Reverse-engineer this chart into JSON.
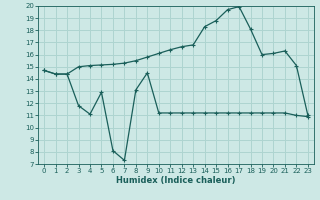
{
  "xlabel": "Humidex (Indice chaleur)",
  "background_color": "#cde8e5",
  "line_color": "#1a5f5a",
  "grid_color": "#aed4d0",
  "xlim": [
    -0.5,
    23.5
  ],
  "ylim": [
    7,
    20
  ],
  "xticks": [
    0,
    1,
    2,
    3,
    4,
    5,
    6,
    7,
    8,
    9,
    10,
    11,
    12,
    13,
    14,
    15,
    16,
    17,
    18,
    19,
    20,
    21,
    22,
    23
  ],
  "yticks": [
    7,
    8,
    9,
    10,
    11,
    12,
    13,
    14,
    15,
    16,
    17,
    18,
    19,
    20
  ],
  "line1_x": [
    0,
    1,
    2,
    3,
    4,
    5,
    6,
    7,
    8,
    9,
    10,
    11,
    12,
    13,
    14,
    15,
    16,
    17,
    18,
    19,
    20,
    21,
    22,
    23
  ],
  "line1_y": [
    14.7,
    14.4,
    14.4,
    15.0,
    15.1,
    15.15,
    15.2,
    15.3,
    15.5,
    15.8,
    16.1,
    16.4,
    16.65,
    16.8,
    18.3,
    18.8,
    19.7,
    19.95,
    18.1,
    16.0,
    16.1,
    16.3,
    15.1,
    11.0
  ],
  "line2_x": [
    0,
    1,
    2,
    3,
    4,
    5,
    6,
    7,
    8,
    9,
    10,
    11,
    12,
    13,
    14,
    15,
    16,
    17,
    18,
    19,
    20,
    21,
    22,
    23
  ],
  "line2_y": [
    14.7,
    14.4,
    14.4,
    11.8,
    11.1,
    12.9,
    8.1,
    7.3,
    13.1,
    14.5,
    11.2,
    11.2,
    11.2,
    11.2,
    11.2,
    11.2,
    11.2,
    11.2,
    11.2,
    11.2,
    11.2,
    11.2,
    11.0,
    10.9
  ]
}
